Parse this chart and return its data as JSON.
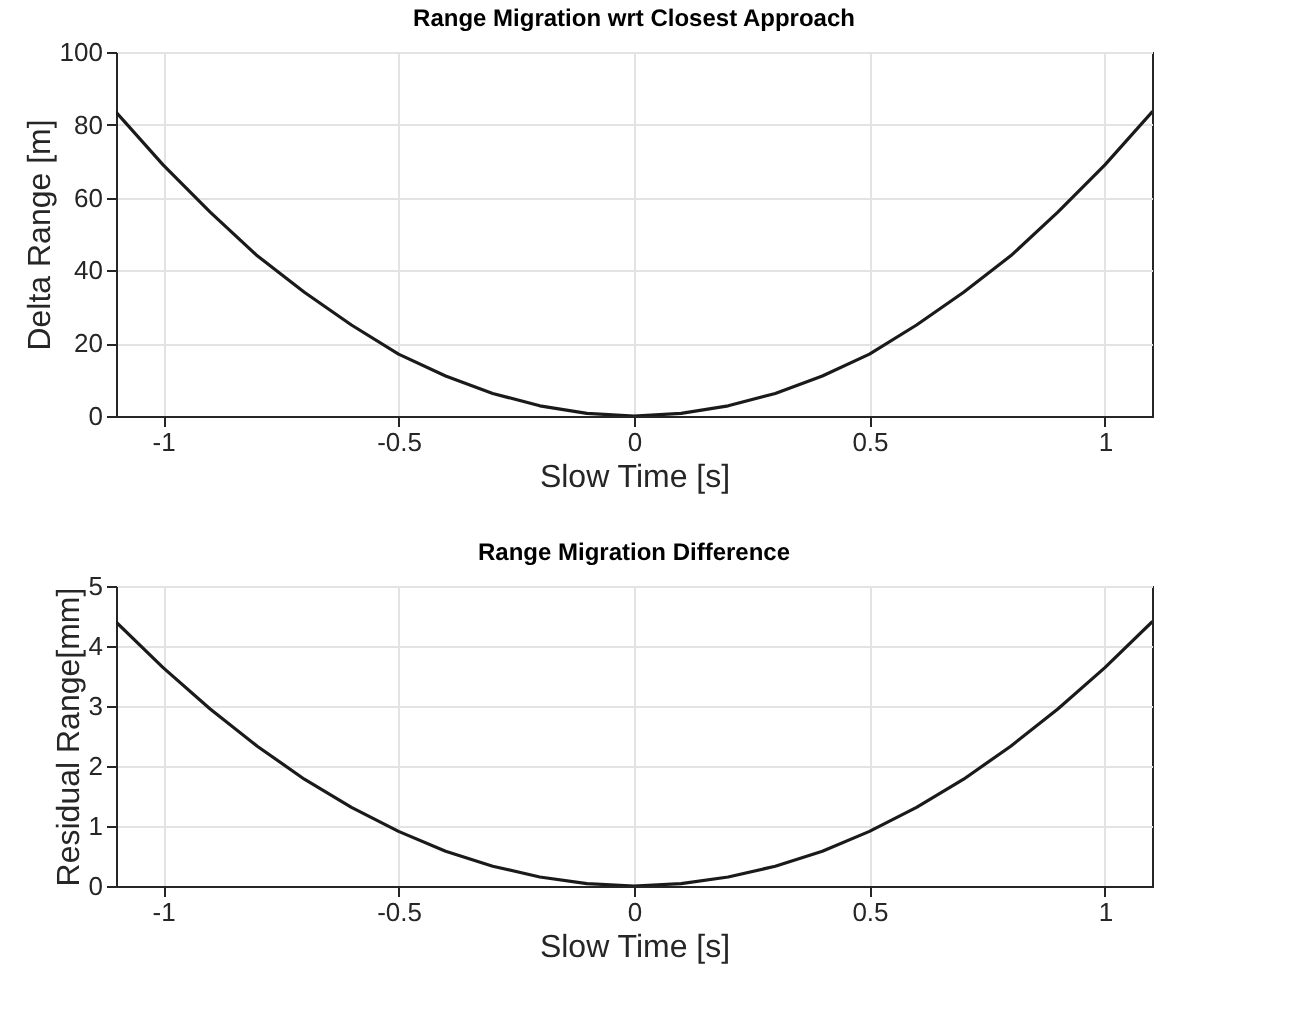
{
  "chart_data": [
    {
      "type": "line",
      "title": "Range Migration wrt Closest Approach",
      "xlabel": "Slow Time [s]",
      "ylabel": "Delta Range [m]",
      "x": [
        -1.1,
        -1,
        -0.9,
        -0.8,
        -0.7,
        -0.6,
        -0.5,
        -0.4,
        -0.3,
        -0.2,
        -0.1,
        0,
        0.1,
        0.2,
        0.3,
        0.4,
        0.5,
        0.6,
        0.7,
        0.8,
        0.9,
        1,
        1.1
      ],
      "series": [
        {
          "color": "#1a1a1a",
          "values": [
            83.5,
            69,
            56,
            44,
            34,
            25,
            17,
            11,
            6.2,
            2.8,
            0.7,
            0,
            0.7,
            2.8,
            6.2,
            11,
            17,
            25,
            34,
            44,
            56,
            69,
            83.5
          ]
        }
      ],
      "xlim": [
        -1.1,
        1.1
      ],
      "xticks": [
        -1,
        -0.5,
        0,
        0.5,
        1
      ],
      "ylim": [
        0,
        100
      ],
      "yticks": [
        0,
        20,
        40,
        60,
        80,
        100
      ],
      "grid": true,
      "line_style": "solid"
    },
    {
      "type": "line",
      "title": "Range Migration Difference",
      "xlabel": "Slow Time [s]",
      "ylabel": "Residual Range[mm]",
      "x": [
        -1.1,
        -1,
        -0.9,
        -0.8,
        -0.7,
        -0.6,
        -0.5,
        -0.4,
        -0.3,
        -0.2,
        -0.1,
        0,
        0.1,
        0.2,
        0.3,
        0.4,
        0.5,
        0.6,
        0.7,
        0.8,
        0.9,
        1,
        1.1
      ],
      "series": [
        {
          "color": "#1a1a1a",
          "values": [
            4.4,
            3.64,
            2.95,
            2.33,
            1.78,
            1.31,
            0.91,
            0.58,
            0.33,
            0.15,
            0.04,
            0,
            0.04,
            0.15,
            0.33,
            0.58,
            0.91,
            1.31,
            1.78,
            2.33,
            2.95,
            3.64,
            4.4
          ]
        }
      ],
      "xlim": [
        -1.1,
        1.1
      ],
      "xticks": [
        -1,
        -0.5,
        0,
        0.5,
        1
      ],
      "ylim": [
        0,
        5
      ],
      "yticks": [
        0,
        1,
        2,
        3,
        4,
        5
      ],
      "grid": true,
      "line_style": "solid"
    }
  ]
}
